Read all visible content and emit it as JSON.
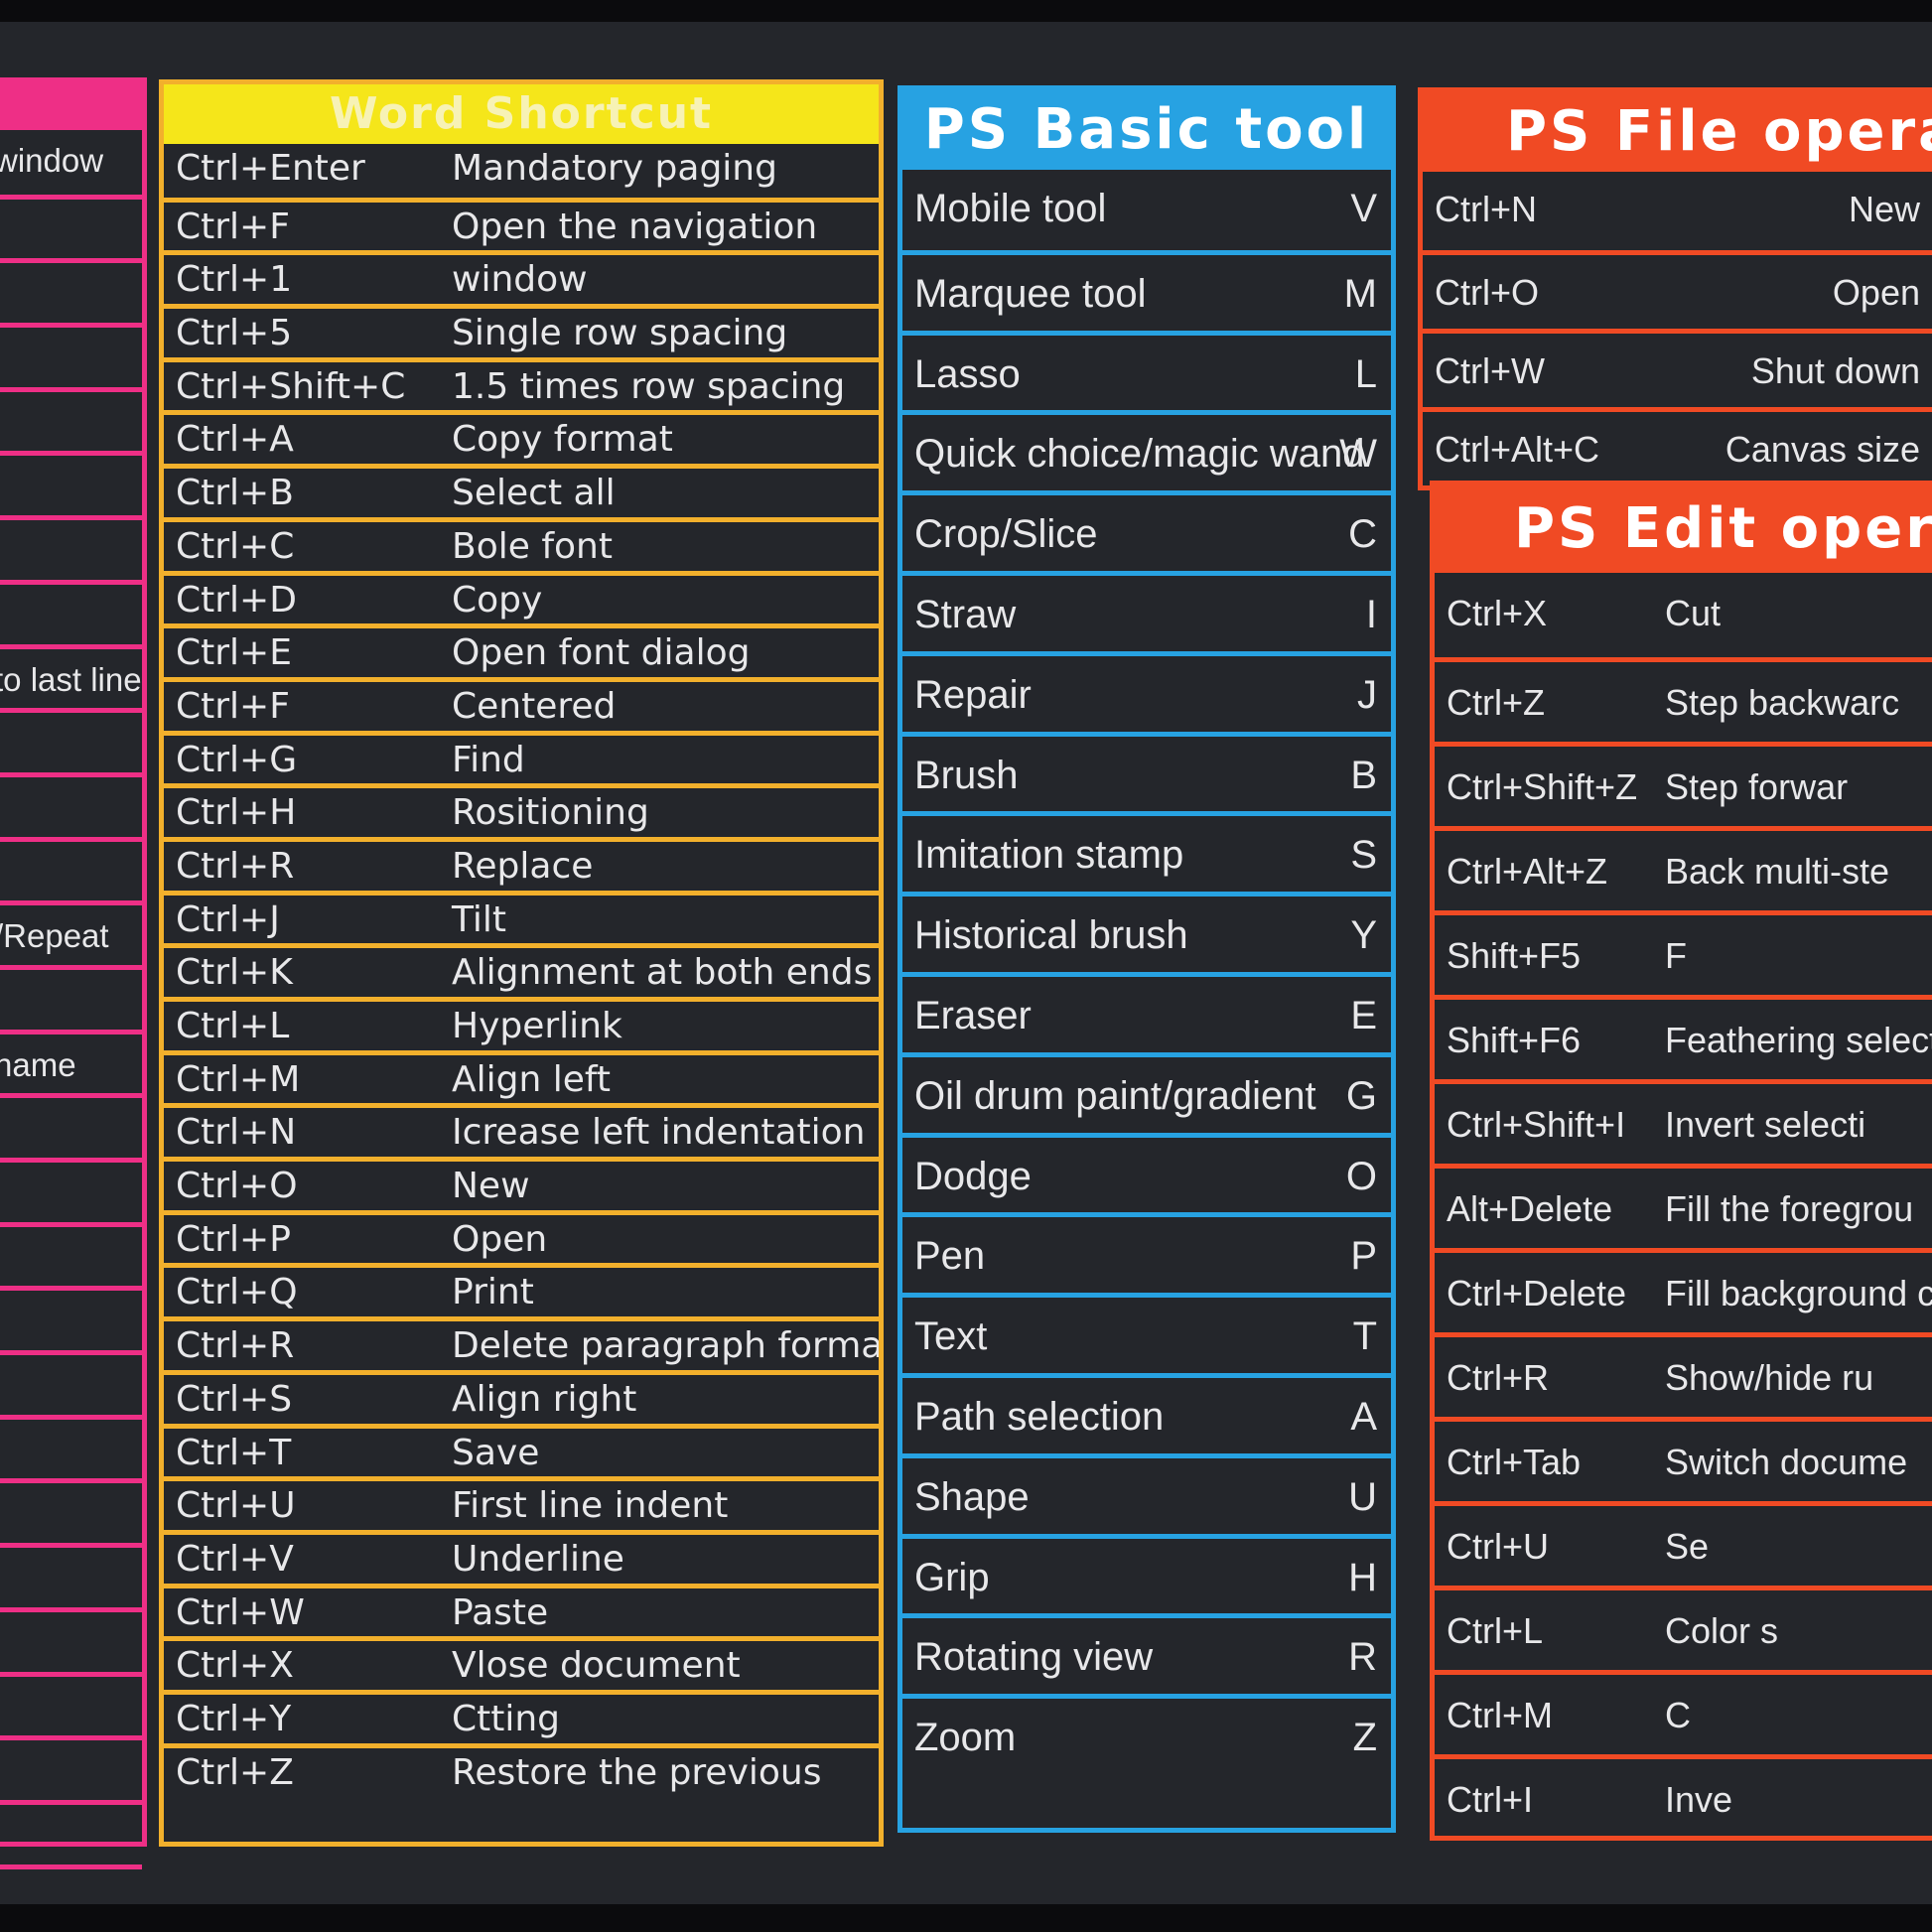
{
  "pink_column": {
    "rows": [
      "window",
      "",
      "",
      "",
      "",
      "",
      "",
      "",
      "to last line",
      "",
      "",
      "",
      "/Repeat",
      "",
      "name",
      "",
      "",
      "",
      "",
      "",
      "",
      "",
      "",
      "",
      "",
      "",
      "",
      ""
    ]
  },
  "word_shortcut": {
    "title": "Word Shortcut",
    "rows": [
      {
        "key": "Ctrl+Enter",
        "action": "Mandatory paging"
      },
      {
        "key": "Ctrl+F",
        "action": "Open the navigation"
      },
      {
        "key": "Ctrl+1",
        "action": "window"
      },
      {
        "key": "Ctrl+5",
        "action": "Single row spacing"
      },
      {
        "key": "Ctrl+Shift+C",
        "action": "1.5 times row spacing"
      },
      {
        "key": "Ctrl+A",
        "action": "Copy format"
      },
      {
        "key": "Ctrl+B",
        "action": "Select all"
      },
      {
        "key": "Ctrl+C",
        "action": "Bole font"
      },
      {
        "key": "Ctrl+D",
        "action": "Copy"
      },
      {
        "key": "Ctrl+E",
        "action": "Open font dialog"
      },
      {
        "key": "Ctrl+F",
        "action": "Centered"
      },
      {
        "key": "Ctrl+G",
        "action": "Find"
      },
      {
        "key": "Ctrl+H",
        "action": "Rositioning"
      },
      {
        "key": "Ctrl+R",
        "action": "Replace"
      },
      {
        "key": "Ctrl+J",
        "action": "Tilt"
      },
      {
        "key": "Ctrl+K",
        "action": "Alignment at both ends"
      },
      {
        "key": "Ctrl+L",
        "action": "Hyperlink"
      },
      {
        "key": "Ctrl+M",
        "action": "Align left"
      },
      {
        "key": "Ctrl+N",
        "action": "Icrease left indentation"
      },
      {
        "key": "Ctrl+O",
        "action": "New"
      },
      {
        "key": "Ctrl+P",
        "action": "Open"
      },
      {
        "key": "Ctrl+Q",
        "action": "Print"
      },
      {
        "key": "Ctrl+R",
        "action": "Delete paragraph format"
      },
      {
        "key": "Ctrl+S",
        "action": "Align right"
      },
      {
        "key": "Ctrl+T",
        "action": "Save"
      },
      {
        "key": "Ctrl+U",
        "action": "First line indent"
      },
      {
        "key": "Ctrl+V",
        "action": "Underline"
      },
      {
        "key": "Ctrl+W",
        "action": "Paste"
      },
      {
        "key": "Ctrl+X",
        "action": "Vlose document"
      },
      {
        "key": "Ctrl+Y",
        "action": "Ctting"
      },
      {
        "key": "Ctrl+Z",
        "action": "Restore the previous"
      }
    ]
  },
  "ps_basic_tool": {
    "title": "PS Basic tool",
    "rows": [
      {
        "tool": "Mobile tool",
        "key": "V"
      },
      {
        "tool": "Marquee tool",
        "key": "M"
      },
      {
        "tool": "Lasso",
        "key": "L"
      },
      {
        "tool": "Quick choice/magic wand",
        "key": "W"
      },
      {
        "tool": "Crop/Slice",
        "key": "C"
      },
      {
        "tool": "Straw",
        "key": "I"
      },
      {
        "tool": "Repair",
        "key": "J"
      },
      {
        "tool": "Brush",
        "key": "B"
      },
      {
        "tool": "Imitation stamp",
        "key": "S"
      },
      {
        "tool": "Historical brush",
        "key": "Y"
      },
      {
        "tool": "Eraser",
        "key": "E"
      },
      {
        "tool": "Oil drum paint/gradient",
        "key": "G"
      },
      {
        "tool": "Dodge",
        "key": "O"
      },
      {
        "tool": "Pen",
        "key": "P"
      },
      {
        "tool": "Text",
        "key": "T"
      },
      {
        "tool": "Path selection",
        "key": "A"
      },
      {
        "tool": "Shape",
        "key": "U"
      },
      {
        "tool": "Grip",
        "key": "H"
      },
      {
        "tool": "Rotating view",
        "key": "R"
      },
      {
        "tool": "Zoom",
        "key": "Z"
      }
    ]
  },
  "ps_file_operation": {
    "title": "PS File operat",
    "rows": [
      {
        "key": "Ctrl+N",
        "action": "New"
      },
      {
        "key": "Ctrl+O",
        "action": "Open"
      },
      {
        "key": "Ctrl+W",
        "action": "Shut down"
      },
      {
        "key": "Ctrl+Alt+C",
        "action": "Canvas size"
      }
    ]
  },
  "ps_edit_operation": {
    "title": "PS Edit opera",
    "rows": [
      {
        "key": "Ctrl+X",
        "action": "Cut"
      },
      {
        "key": "Ctrl+Z",
        "action": "Step backwarc"
      },
      {
        "key": "Ctrl+Shift+Z",
        "action": "Step forwar"
      },
      {
        "key": "Ctrl+Alt+Z",
        "action": "Back multi-ste"
      },
      {
        "key": "Shift+F5",
        "action": "F"
      },
      {
        "key": "Shift+F6",
        "action": "Feathering selectio"
      },
      {
        "key": "Ctrl+Shift+I",
        "action": "Invert selecti"
      },
      {
        "key": "Alt+Delete",
        "action": "Fill the foregrou"
      },
      {
        "key": "Ctrl+Delete",
        "action": "Fill background co"
      },
      {
        "key": "Ctrl+R",
        "action": "Show/hide ru"
      },
      {
        "key": "Ctrl+Tab",
        "action": "Switch docume"
      },
      {
        "key": "Ctrl+U",
        "action": "Se"
      },
      {
        "key": "Ctrl+L",
        "action": "Color s"
      },
      {
        "key": "Ctrl+M",
        "action": "C"
      },
      {
        "key": "Ctrl+I",
        "action": "Inve"
      }
    ]
  },
  "colors": {
    "pink": "#ee2f86",
    "yellow_header": "#f5e61a",
    "yellow_border": "#f2b02c",
    "blue": "#27a2e2",
    "red": "#f04a24",
    "mat": "#24262b"
  }
}
